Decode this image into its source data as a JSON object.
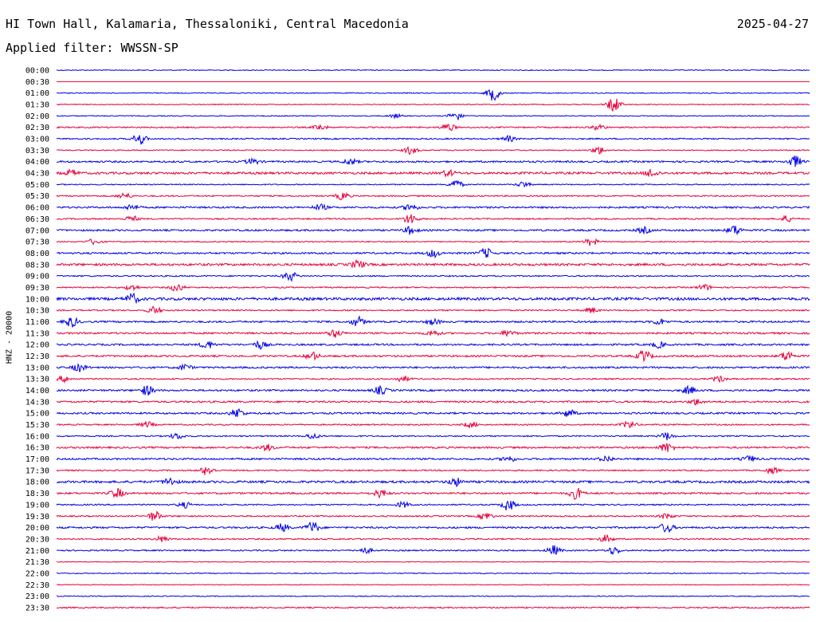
{
  "header": {
    "station": "HI Town Hall, Kalamaria, Thessaloniki, Central Macedonia",
    "date": "2025-04-27",
    "filter": "Applied filter: WWSSN-SP"
  },
  "chart_data": {
    "type": "line",
    "subtype": "helicorder",
    "ylabel": "HNZ - 20000",
    "colors": {
      "even": "#0000e6",
      "odd": "#e6003a"
    },
    "rows": [
      {
        "time": "00:00",
        "level": 1,
        "events": []
      },
      {
        "time": "00:30",
        "level": 0,
        "events": []
      },
      {
        "time": "01:00",
        "level": 1,
        "events": [
          [
            0.58,
            4
          ]
        ]
      },
      {
        "time": "01:30",
        "level": 1,
        "events": [
          [
            0.74,
            4
          ]
        ]
      },
      {
        "time": "02:00",
        "level": 1,
        "events": [
          [
            0.45,
            1
          ],
          [
            0.53,
            2.5
          ]
        ]
      },
      {
        "time": "02:30",
        "level": 1.5,
        "events": [
          [
            0.35,
            1.5
          ],
          [
            0.52,
            2
          ],
          [
            0.72,
            1.5
          ]
        ]
      },
      {
        "time": "03:00",
        "level": 1.5,
        "events": [
          [
            0.11,
            3
          ],
          [
            0.6,
            1.5
          ]
        ]
      },
      {
        "time": "03:30",
        "level": 1.2,
        "events": [
          [
            0.47,
            2
          ],
          [
            0.72,
            2
          ]
        ]
      },
      {
        "time": "04:00",
        "level": 2,
        "events": [
          [
            0.26,
            1.5
          ],
          [
            0.39,
            1.5
          ],
          [
            0.98,
            3
          ]
        ]
      },
      {
        "time": "04:30",
        "level": 2.5,
        "events": [
          [
            0.02,
            1.5
          ],
          [
            0.52,
            1.5
          ],
          [
            0.79,
            2
          ]
        ]
      },
      {
        "time": "05:00",
        "level": 1.2,
        "events": [
          [
            0.53,
            2.5
          ],
          [
            0.62,
            1.5
          ]
        ]
      },
      {
        "time": "05:30",
        "level": 1.5,
        "events": [
          [
            0.09,
            1.5
          ],
          [
            0.38,
            2
          ]
        ]
      },
      {
        "time": "06:00",
        "level": 2,
        "events": [
          [
            0.1,
            1.5
          ],
          [
            0.35,
            1.5
          ],
          [
            0.47,
            2
          ]
        ]
      },
      {
        "time": "06:30",
        "level": 1.5,
        "events": [
          [
            0.1,
            1.5
          ],
          [
            0.47,
            3
          ],
          [
            0.97,
            1.5
          ]
        ]
      },
      {
        "time": "07:00",
        "level": 2,
        "events": [
          [
            0.47,
            2
          ],
          [
            0.78,
            1.5
          ],
          [
            0.9,
            2.5
          ]
        ]
      },
      {
        "time": "07:30",
        "level": 1.2,
        "events": [
          [
            0.05,
            1.5
          ],
          [
            0.71,
            2
          ]
        ]
      },
      {
        "time": "08:00",
        "level": 2,
        "events": [
          [
            0.5,
            2
          ],
          [
            0.57,
            2.5
          ]
        ]
      },
      {
        "time": "08:30",
        "level": 2.5,
        "events": [
          [
            0.4,
            2
          ]
        ]
      },
      {
        "time": "09:00",
        "level": 1.5,
        "events": [
          [
            0.31,
            2.5
          ]
        ]
      },
      {
        "time": "09:30",
        "level": 1.5,
        "events": [
          [
            0.1,
            1.5
          ],
          [
            0.16,
            2
          ],
          [
            0.86,
            1.5
          ]
        ]
      },
      {
        "time": "10:00",
        "level": 3,
        "events": [
          [
            0.1,
            2.5
          ]
        ]
      },
      {
        "time": "10:30",
        "level": 1.5,
        "events": [
          [
            0.13,
            2
          ],
          [
            0.71,
            1.5
          ]
        ]
      },
      {
        "time": "11:00",
        "level": 2,
        "events": [
          [
            0.02,
            2.5
          ],
          [
            0.4,
            2.5
          ],
          [
            0.5,
            1.5
          ],
          [
            0.8,
            1.5
          ]
        ]
      },
      {
        "time": "11:30",
        "level": 2,
        "events": [
          [
            0.37,
            2
          ],
          [
            0.5,
            1.5
          ],
          [
            0.6,
            1.5
          ]
        ]
      },
      {
        "time": "12:00",
        "level": 2,
        "events": [
          [
            0.2,
            2
          ],
          [
            0.27,
            2
          ],
          [
            0.8,
            1.5
          ]
        ]
      },
      {
        "time": "12:30",
        "level": 2,
        "events": [
          [
            0.34,
            2
          ],
          [
            0.78,
            3
          ],
          [
            0.97,
            2.5
          ]
        ]
      },
      {
        "time": "13:00",
        "level": 2,
        "events": [
          [
            0.03,
            2
          ],
          [
            0.17,
            1.5
          ]
        ]
      },
      {
        "time": "13:30",
        "level": 1.5,
        "events": [
          [
            0.01,
            1.5
          ],
          [
            0.46,
            1.5
          ],
          [
            0.88,
            1.5
          ]
        ]
      },
      {
        "time": "14:00",
        "level": 2,
        "events": [
          [
            0.12,
            2.5
          ],
          [
            0.43,
            2
          ],
          [
            0.84,
            2
          ]
        ]
      },
      {
        "time": "14:30",
        "level": 2,
        "events": [
          [
            0.85,
            1.5
          ]
        ]
      },
      {
        "time": "15:00",
        "level": 2,
        "events": [
          [
            0.24,
            2.5
          ],
          [
            0.68,
            2
          ]
        ]
      },
      {
        "time": "15:30",
        "level": 1.5,
        "events": [
          [
            0.12,
            1.5
          ],
          [
            0.55,
            1.5
          ],
          [
            0.76,
            2
          ]
        ]
      },
      {
        "time": "16:00",
        "level": 1.5,
        "events": [
          [
            0.16,
            1.5
          ],
          [
            0.34,
            1.5
          ],
          [
            0.81,
            2
          ]
        ]
      },
      {
        "time": "16:30",
        "level": 2,
        "events": [
          [
            0.28,
            1.5
          ],
          [
            0.81,
            2.5
          ]
        ]
      },
      {
        "time": "17:00",
        "level": 2,
        "events": [
          [
            0.6,
            1.5
          ],
          [
            0.73,
            1.5
          ],
          [
            0.92,
            1.5
          ]
        ]
      },
      {
        "time": "17:30",
        "level": 1.5,
        "events": [
          [
            0.2,
            2.5
          ],
          [
            0.95,
            1.5
          ]
        ]
      },
      {
        "time": "18:00",
        "level": 2.5,
        "events": [
          [
            0.15,
            2
          ],
          [
            0.53,
            2
          ]
        ]
      },
      {
        "time": "18:30",
        "level": 2,
        "events": [
          [
            0.08,
            2.5
          ],
          [
            0.43,
            2
          ],
          [
            0.69,
            3
          ]
        ]
      },
      {
        "time": "19:00",
        "level": 1.5,
        "events": [
          [
            0.17,
            1.5
          ],
          [
            0.46,
            1.5
          ],
          [
            0.6,
            3
          ]
        ]
      },
      {
        "time": "19:30",
        "level": 1.5,
        "events": [
          [
            0.13,
            2.5
          ],
          [
            0.57,
            2
          ],
          [
            0.81,
            1.5
          ]
        ]
      },
      {
        "time": "20:00",
        "level": 2,
        "events": [
          [
            0.3,
            2
          ],
          [
            0.34,
            3
          ],
          [
            0.81,
            2.5
          ]
        ]
      },
      {
        "time": "20:30",
        "level": 1.5,
        "events": [
          [
            0.14,
            1.5
          ],
          [
            0.73,
            2
          ]
        ]
      },
      {
        "time": "21:00",
        "level": 1.5,
        "events": [
          [
            0.41,
            1.5
          ],
          [
            0.66,
            2.5
          ],
          [
            0.74,
            2
          ]
        ]
      },
      {
        "time": "21:30",
        "level": 0.8,
        "events": []
      },
      {
        "time": "22:00",
        "level": 1,
        "events": []
      },
      {
        "time": "22:30",
        "level": 0.8,
        "events": []
      },
      {
        "time": "23:00",
        "level": 1,
        "events": []
      },
      {
        "time": "23:30",
        "level": 1.5,
        "events": []
      }
    ]
  }
}
